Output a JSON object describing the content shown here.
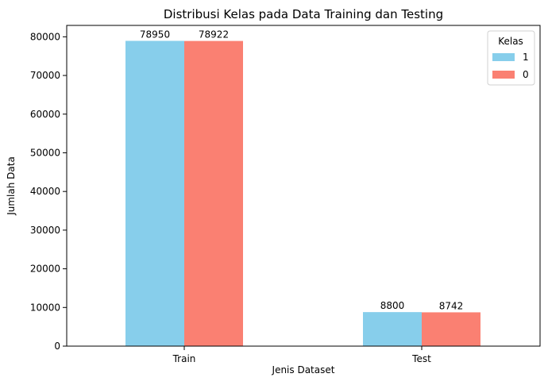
{
  "chart_data": {
    "type": "bar",
    "title": "Distribusi Kelas pada Data Training dan Testing",
    "xlabel": "Jenis Dataset",
    "ylabel": "Jumlah Data",
    "categories": [
      "Train",
      "Test"
    ],
    "series": [
      {
        "name": "1",
        "color": "#87CEEB",
        "values": [
          78950,
          8800
        ]
      },
      {
        "name": "0",
        "color": "#FA8072",
        "values": [
          78922,
          8742
        ]
      }
    ],
    "ylim": [
      0,
      82947.5
    ],
    "yticks": [
      0,
      10000,
      20000,
      30000,
      40000,
      50000,
      60000,
      70000,
      80000
    ],
    "grid": false,
    "legend": {
      "title": "Kelas",
      "position": "top-right"
    }
  }
}
